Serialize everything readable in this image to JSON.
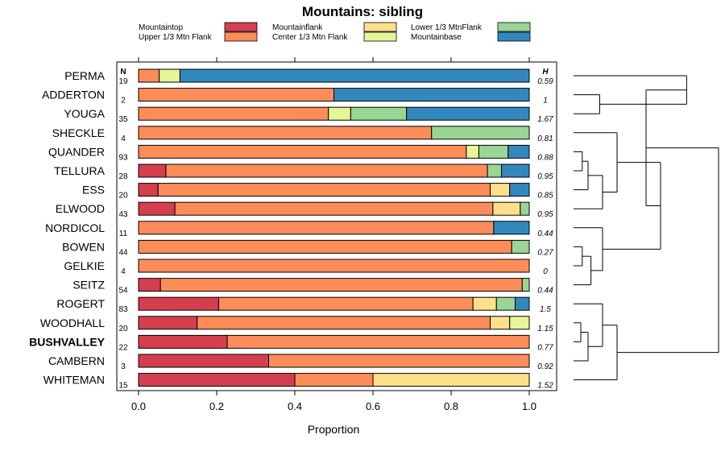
{
  "chart_data": {
    "type": "bar",
    "stacked": true,
    "orientation": "horizontal",
    "title": "Mountains: sibling",
    "xlabel": "Proportion",
    "ylabel": "",
    "xlim": [
      0,
      1
    ],
    "xticks": [
      "0.0",
      "0.2",
      "0.4",
      "0.6",
      "0.8",
      "1.0"
    ],
    "n_header": "N",
    "h_header": "H",
    "legend": [
      {
        "name": "Mountaintop",
        "color": "#d53e4f"
      },
      {
        "name": "Upper 1/3 Mtn Flank",
        "color": "#fc8d59"
      },
      {
        "name": "Mountainflank",
        "color": "#fee08b"
      },
      {
        "name": "Center 1/3 Mtn Flank",
        "color": "#e6f598"
      },
      {
        "name": "Lower 1/3 MtnFlank",
        "color": "#99d594"
      },
      {
        "name": "Mountainbase",
        "color": "#3288bd"
      }
    ],
    "categories": [
      "PERMA",
      "ADDERTON",
      "YOUGA",
      "SHECKLE",
      "QUANDER",
      "TELLURA",
      "ESS",
      "ELWOOD",
      "NORDICOL",
      "BOWEN",
      "GELKIE",
      "SEITZ",
      "ROGERT",
      "WOODHALL",
      "BUSHVALLEY",
      "CAMBERN",
      "WHITEMAN"
    ],
    "bold_categories": [
      "BUSHVALLEY"
    ],
    "n": [
      "19",
      "2",
      "35",
      "4",
      "93",
      "28",
      "20",
      "43",
      "11",
      "44",
      "4",
      "54",
      "83",
      "20",
      "22",
      "3",
      "15"
    ],
    "h": [
      "0.59",
      "1",
      "1.67",
      "0.81",
      "0.88",
      "0.95",
      "0.85",
      "0.95",
      "0.44",
      "0.27",
      "0",
      "0.44",
      "1.5",
      "1.15",
      "0.77",
      "0.92",
      "1.52"
    ],
    "series": [
      {
        "name": "Mountaintop",
        "values": [
          0,
          0,
          0,
          0,
          0,
          0.07,
          0.05,
          0.093,
          0,
          0,
          0,
          0.056,
          0.205,
          0.15,
          0.227,
          0.333,
          0.4
        ]
      },
      {
        "name": "Upper 1/3 Mtn Flank",
        "values": [
          0.053,
          0.5,
          0.486,
          0.75,
          0.839,
          0.823,
          0.85,
          0.814,
          0.909,
          0.955,
          1,
          0.926,
          0.651,
          0.75,
          0.773,
          0.667,
          0.2
        ]
      },
      {
        "name": "Mountainflank",
        "values": [
          0,
          0,
          0,
          0,
          0,
          0,
          0.05,
          0.07,
          0,
          0,
          0,
          0,
          0.06,
          0.05,
          0,
          0,
          0.4
        ]
      },
      {
        "name": "Center 1/3 Mtn Flank",
        "values": [
          0.053,
          0,
          0.057,
          0,
          0.032,
          0,
          0,
          0,
          0,
          0,
          0,
          0,
          0,
          0.05,
          0,
          0,
          0
        ]
      },
      {
        "name": "Lower 1/3 MtnFlank",
        "values": [
          0,
          0,
          0.143,
          0.25,
          0.075,
          0.036,
          0,
          0.023,
          0,
          0.045,
          0,
          0.018,
          0.048,
          0,
          0,
          0,
          0
        ]
      },
      {
        "name": "Mountainbase",
        "values": [
          0.894,
          0.5,
          0.314,
          0,
          0.054,
          0.071,
          0.05,
          0,
          0.091,
          0,
          0,
          0,
          0.036,
          0,
          0,
          0,
          0
        ]
      }
    ],
    "dendrogram": {
      "leaves": [
        "PERMA",
        "ADDERTON",
        "YOUGA",
        "SHECKLE",
        "QUANDER",
        "TELLURA",
        "ESS",
        "ELWOOD",
        "NORDICOL",
        "BOWEN",
        "GELKIE",
        "SEITZ",
        "ROGERT",
        "WOODHALL",
        "BUSHVALLEY",
        "CAMBERN",
        "WHITEMAN"
      ],
      "tree": {
        "h": 1.0,
        "c": [
          {
            "h": 0.5,
            "c": [
              {
                "h": 0.78,
                "c": [
                  "PERMA",
                  {
                    "h": 0.18,
                    "c": [
                      "ADDERTON",
                      "YOUGA"
                    ]
                  }
                ]
              },
              {
                "h": 0.6,
                "c": [
                  {
                    "h": 0.3,
                    "c": [
                      "SHECKLE",
                      {
                        "h": 0.2,
                        "c": [
                          {
                            "h": 0.1,
                            "c": [
                              {
                                "h": 0.06,
                                "c": [
                                  "QUANDER",
                                  "TELLURA"
                                ]
                              },
                              "ESS"
                            ]
                          },
                          "ELWOOD"
                        ]
                      }
                    ]
                  },
                  {
                    "h": 0.2,
                    "c": [
                      "NORDICOL",
                      {
                        "h": 0.12,
                        "c": [
                          {
                            "h": 0.06,
                            "c": [
                              "BOWEN",
                              "GELKIE"
                            ]
                          },
                          "SEITZ"
                        ]
                      }
                    ]
                  }
                ]
              }
            ]
          },
          {
            "h": 0.3,
            "c": [
              {
                "h": 0.2,
                "c": [
                  "ROGERT",
                  {
                    "h": 0.1,
                    "c": [
                      {
                        "h": 0.05,
                        "c": [
                          "WOODHALL",
                          "BUSHVALLEY"
                        ]
                      },
                      "CAMBERN"
                    ]
                  }
                ]
              },
              "WHITEMAN"
            ]
          }
        ]
      }
    }
  }
}
